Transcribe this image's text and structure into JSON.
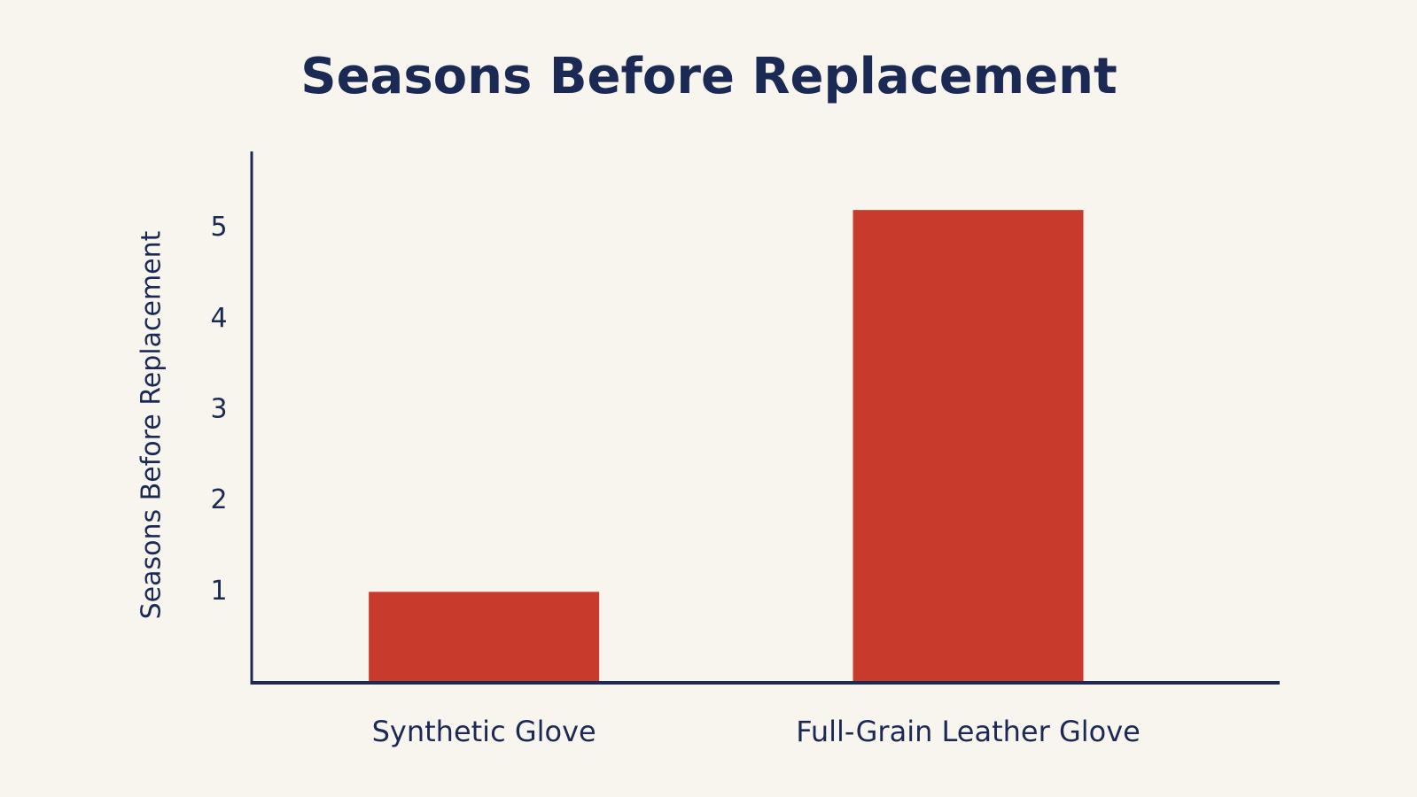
{
  "chart_data": {
    "type": "bar",
    "title": "Seasons Before Replacement",
    "y_label": "Seasons Before Replacement",
    "categories": [
      "Synthetic Glove",
      "Full-Grain Leather Glove"
    ],
    "values": [
      1,
      5.2
    ],
    "color": "#c83b2c",
    "ylim": [
      0,
      6
    ],
    "yticks": [
      1,
      2,
      3,
      4,
      5
    ],
    "grid": false
  }
}
